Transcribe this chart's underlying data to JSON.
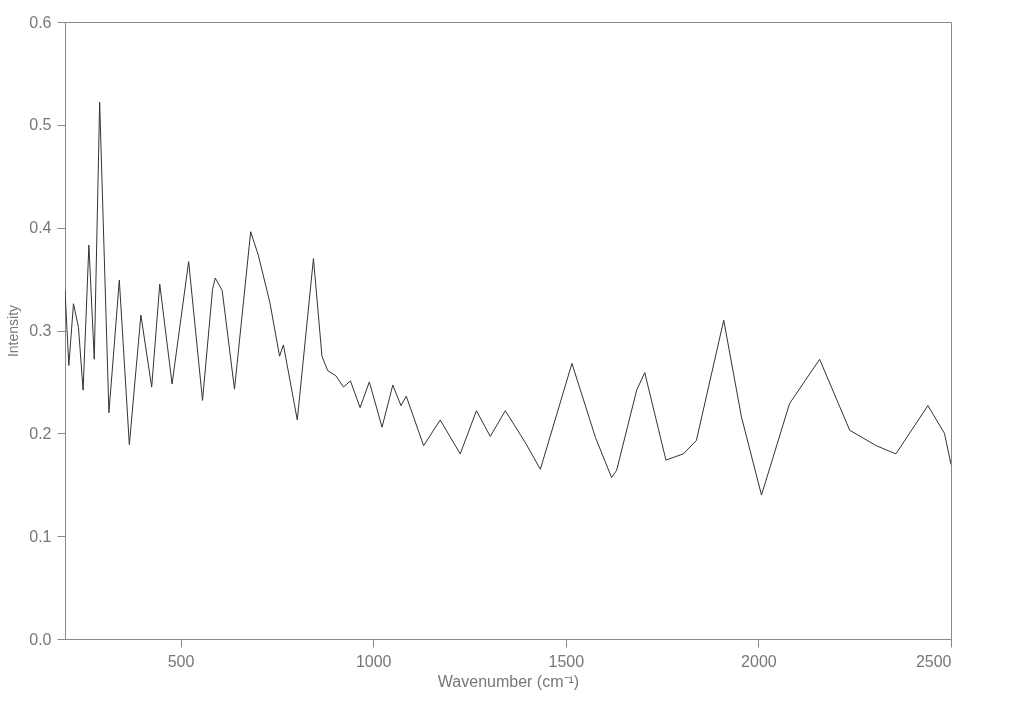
{
  "chart_data": {
    "type": "line",
    "xlabel": "Wavenumber (cm⁻¹)",
    "ylabel": "Intensity",
    "xlim": [
      200,
      2500
    ],
    "ylim": [
      0,
      0.6
    ],
    "xticks": [
      500,
      1000,
      1500,
      2000,
      2500
    ],
    "yticks": [
      {
        "value": 0,
        "label": "0.0"
      },
      {
        "value": 0.1,
        "label": "0.1"
      },
      {
        "value": 0.2,
        "label": "0.2"
      },
      {
        "value": 0.3,
        "label": "0.3"
      },
      {
        "value": 0.4,
        "label": "0.4"
      },
      {
        "value": 0.5,
        "label": "0.5"
      },
      {
        "value": 0.6,
        "label": "0.6"
      }
    ],
    "grid": false,
    "marker": "none",
    "line_style": "solid",
    "series": [
      {
        "color": "#333333",
        "x": [
          200,
          210,
          222,
          235,
          247,
          262,
          276,
          290,
          314,
          341,
          367,
          397,
          425,
          446,
          478,
          521,
          557,
          583,
          590,
          608,
          640,
          682,
          702,
          732,
          757,
          767,
          803,
          845,
          867,
          882,
          903,
          923,
          941,
          966,
          990,
          1023,
          1051,
          1072,
          1086,
          1131,
          1174,
          1226,
          1268,
          1304,
          1343,
          1395,
          1434,
          1516,
          1577,
          1619,
          1632,
          1684,
          1705,
          1760,
          1805,
          1839,
          1910,
          1956,
          2008,
          2081,
          2159,
          2237,
          2306,
          2357,
          2440,
          2483,
          2500
        ],
        "values": [
          0.339,
          0.266,
          0.326,
          0.303,
          0.242,
          0.383,
          0.272,
          0.522,
          0.22,
          0.349,
          0.189,
          0.315,
          0.245,
          0.345,
          0.248,
          0.367,
          0.232,
          0.34,
          0.351,
          0.339,
          0.243,
          0.396,
          0.373,
          0.327,
          0.275,
          0.286,
          0.213,
          0.37,
          0.275,
          0.261,
          0.256,
          0.245,
          0.251,
          0.225,
          0.25,
          0.206,
          0.247,
          0.227,
          0.236,
          0.188,
          0.213,
          0.18,
          0.222,
          0.197,
          0.222,
          0.191,
          0.165,
          0.268,
          0.196,
          0.157,
          0.164,
          0.242,
          0.259,
          0.174,
          0.18,
          0.193,
          0.31,
          0.216,
          0.14,
          0.229,
          0.272,
          0.203,
          0.188,
          0.18,
          0.227,
          0.2,
          0.17
        ]
      }
    ]
  }
}
